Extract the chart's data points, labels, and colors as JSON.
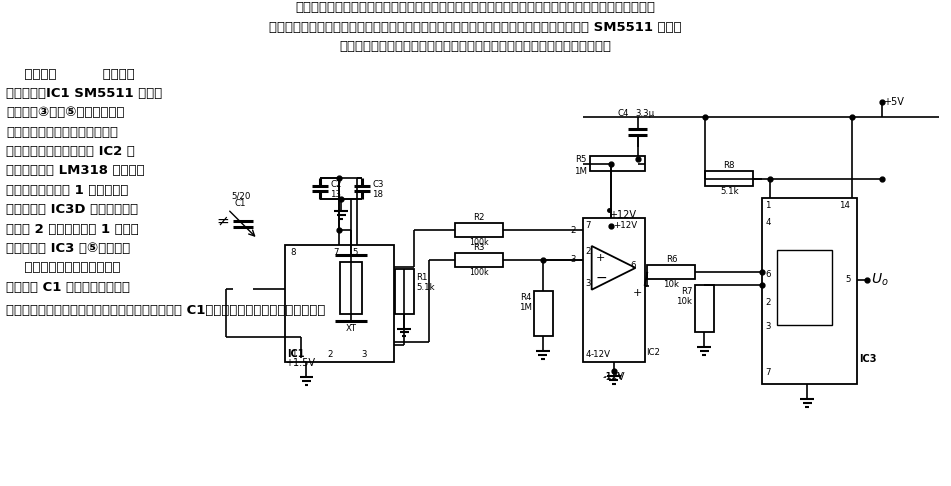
{
  "bg_color": "#ffffff",
  "text_color": "#000000",
  "para1": "在数字电路中，常常需要用精确的秒脉冲信号来对检测的信号进行采样取值，实际中多采用高频振荡器",
  "para2": "产生高频振荡信号，然后经多级分频电路得到。这里介绍一种利用高频石英钟专用集成电路 SM5511 产生精",
  "para3": "确秒脉冲的电路，它具有结构简单、精确度高的优点，安装容易，一装即成。",
  "left_texts": [
    "    电路如图          所示。接",
    "通电源后，IC1 SM5511 开始工",
    "作，在其③脚与⑤脚分别产生幅",
    "值相等、极性相反的正负窄幅脉",
    "冲信号。两路脉冲信号经 IC2 高",
    "速运算放大器 LM318 比较放大",
    "后，合并成周期为 1 秒的窄幅脉",
    "冲信号，经 IC3D 触发器后变成",
    "周期为 2 秒、占空比为 1 的秒脉",
    "冲信号，由 IC3 的⑤脚输出。",
    "    本电路调试十分简单，调节",
    "微调电容 C1 可以改变石英谐振"
  ],
  "bottom_text": "器的振荡频率。配合高精度的高频计数器调节电容 C1，便可以得到精确的秒脉冲信号。",
  "font_size": 9.5,
  "font_size_small": 7.0,
  "font_size_tiny": 6.2
}
